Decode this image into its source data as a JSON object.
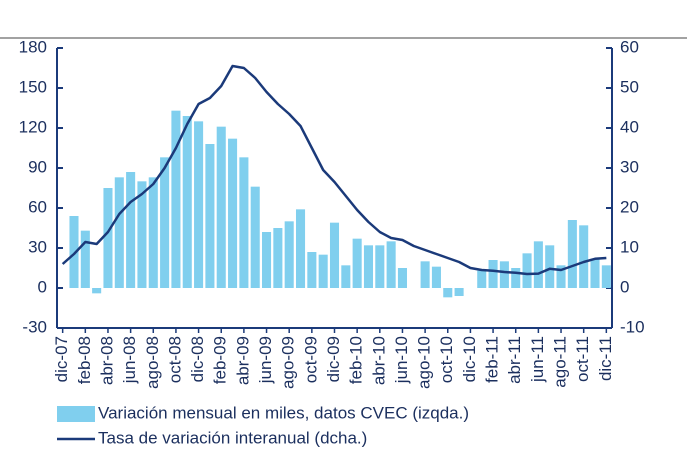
{
  "chart_data": {
    "type": "combo",
    "categories": [
      "dic-07",
      null,
      "feb-08",
      null,
      "abr-08",
      null,
      "jun-08",
      null,
      "ago-08",
      null,
      "oct-08",
      null,
      "dic-08",
      null,
      "feb-09",
      null,
      "abr-09",
      null,
      "jun-09",
      null,
      "ago-09",
      null,
      "oct-09",
      null,
      "dic-09",
      null,
      "feb-10",
      null,
      "abr-10",
      null,
      "jun-10",
      null,
      "ago-10",
      null,
      "oct-10",
      null,
      "dic-10",
      null,
      "feb-11",
      null,
      "abr-11",
      null,
      "jun-11",
      null,
      "ago-11",
      null,
      "oct-11",
      null,
      "dic-11"
    ],
    "series": [
      {
        "name": "Variación mensual en miles, datos CVEC (izqda.)",
        "type": "bar",
        "color": "#80cfee",
        "values": [
          null,
          54,
          43,
          -4,
          75,
          83,
          87,
          80,
          83,
          98,
          133,
          129,
          125,
          108,
          121,
          112,
          98,
          76,
          42,
          45,
          50,
          59,
          27,
          25,
          49,
          17,
          37,
          32,
          32,
          35,
          15,
          0,
          20,
          16,
          -7,
          -6,
          0,
          13,
          21,
          20,
          15,
          26,
          35,
          32,
          17,
          51,
          47,
          22,
          17
        ]
      },
      {
        "name": "Tasa de variación interanual  (dcha.)",
        "type": "line",
        "axis": "y2",
        "color": "#1b3a7a",
        "values": [
          6,
          8.5,
          11.5,
          11,
          14,
          18.5,
          21.5,
          23.5,
          26,
          30,
          35,
          41,
          46,
          47.5,
          50.5,
          55.5,
          55,
          52.5,
          49,
          46,
          43.5,
          40.5,
          35,
          29.5,
          26.5,
          23,
          19.5,
          16.5,
          14,
          12.5,
          12,
          10.5,
          9.5,
          8.5,
          7.5,
          6.5,
          5,
          4.5,
          4.3,
          4,
          3.8,
          3.5,
          3.6,
          4.8,
          4.5,
          5.5,
          6.5,
          7.3,
          7.5
        ]
      }
    ],
    "ylim": [
      -30,
      180
    ],
    "yticks": [
      -30,
      0,
      30,
      60,
      90,
      120,
      150,
      180
    ],
    "y2lim": [
      -10,
      60
    ],
    "y2ticks": [
      -10,
      0,
      10,
      20,
      30,
      40,
      50,
      60
    ],
    "grid": false
  }
}
